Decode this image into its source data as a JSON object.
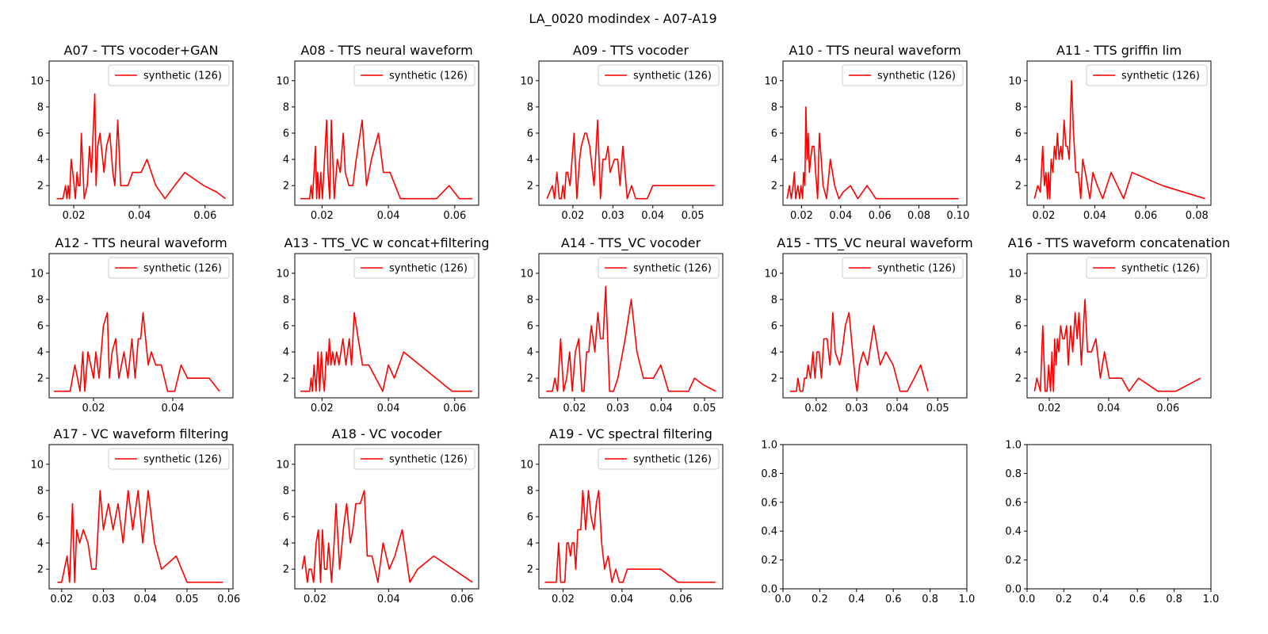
{
  "figure": {
    "title": "LA_0020 modindex - A07-A19",
    "line_color": "#ff0000"
  },
  "chart_data": [
    {
      "type": "line",
      "title": "A07 - TTS vocoder+GAN",
      "legend": "synthetic (126)",
      "legend_position": "upper right",
      "xlim": [
        0.0125,
        0.0685
      ],
      "ylim": [
        0.5,
        11.5
      ],
      "xticks": [
        0.02,
        0.04,
        0.06
      ],
      "yticks": [
        2,
        4,
        6,
        8,
        10
      ],
      "x": [
        0.0148,
        0.0167,
        0.0175,
        0.0179,
        0.0183,
        0.0187,
        0.0192,
        0.0197,
        0.0201,
        0.0205,
        0.021,
        0.0214,
        0.0219,
        0.0223,
        0.0232,
        0.0241,
        0.0248,
        0.0254,
        0.0264,
        0.0268,
        0.0273,
        0.028,
        0.0292,
        0.03,
        0.031,
        0.0319,
        0.0325,
        0.0334,
        0.0343,
        0.0354,
        0.0365,
        0.0379,
        0.0405,
        0.0423,
        0.045,
        0.0478,
        0.0507,
        0.0538,
        0.0596,
        0.0636,
        0.0662
      ],
      "y": [
        1,
        1,
        2,
        1,
        2,
        1,
        4,
        3,
        2,
        1,
        3,
        2,
        2,
        6,
        1,
        2,
        5,
        3,
        9,
        2,
        5,
        6,
        3,
        5,
        6,
        3,
        2,
        7,
        2,
        2,
        2,
        3,
        3,
        4,
        2,
        1,
        2,
        3,
        2,
        1.5,
        1
      ]
    },
    {
      "type": "line",
      "title": "A08 - TTS neural waveform",
      "legend": "synthetic (126)",
      "legend_position": "upper right",
      "xlim": [
        0.0118,
        0.0672
      ],
      "ylim": [
        0.5,
        11.5
      ],
      "xticks": [
        0.02,
        0.04,
        0.06
      ],
      "yticks": [
        2,
        4,
        6,
        8,
        10
      ],
      "x": [
        0.0135,
        0.0163,
        0.0167,
        0.0171,
        0.0176,
        0.018,
        0.0184,
        0.0187,
        0.0192,
        0.0196,
        0.0201,
        0.0214,
        0.0218,
        0.0223,
        0.0228,
        0.0237,
        0.0246,
        0.0255,
        0.0264,
        0.027,
        0.0281,
        0.0293,
        0.0303,
        0.0321,
        0.0334,
        0.0349,
        0.037,
        0.0385,
        0.0405,
        0.0436,
        0.0472,
        0.0545,
        0.0583,
        0.0614,
        0.0653
      ],
      "y": [
        1,
        1,
        2,
        1,
        3,
        5,
        1,
        3,
        1,
        3,
        1,
        7,
        3,
        1,
        7,
        1,
        4,
        3,
        6,
        3,
        2,
        2,
        4,
        7,
        2,
        4,
        6,
        3,
        3,
        1,
        1,
        1,
        2,
        1,
        1
      ]
    },
    {
      "type": "line",
      "title": "A09 - TTS vocoder",
      "legend": "synthetic (126)",
      "legend_position": "upper right",
      "xlim": [
        0.0115,
        0.0575
      ],
      "ylim": [
        0.5,
        11.5
      ],
      "xticks": [
        0.02,
        0.03,
        0.04,
        0.05
      ],
      "yticks": [
        2,
        4,
        6,
        8,
        10
      ],
      "x": [
        0.0135,
        0.0149,
        0.0154,
        0.016,
        0.0166,
        0.0171,
        0.0175,
        0.0179,
        0.0183,
        0.0187,
        0.0193,
        0.0203,
        0.021,
        0.0217,
        0.0221,
        0.023,
        0.0234,
        0.0242,
        0.0253,
        0.0262,
        0.0269,
        0.0275,
        0.0282,
        0.0288,
        0.0293,
        0.0304,
        0.0312,
        0.0318,
        0.0325,
        0.0336,
        0.0347,
        0.0357,
        0.0375,
        0.0386,
        0.04,
        0.0422,
        0.0437,
        0.0452,
        0.0475,
        0.0555
      ],
      "y": [
        1,
        2,
        1,
        3,
        1,
        1,
        2,
        1,
        3,
        3,
        2,
        6,
        1,
        4,
        5,
        6,
        6,
        5,
        2,
        7,
        1,
        4,
        4,
        5,
        3,
        4,
        4,
        2,
        5,
        1,
        2,
        1,
        1,
        1,
        2,
        2,
        2,
        2,
        2,
        2
      ]
    },
    {
      "type": "line",
      "title": "A10 - TTS neural waveform",
      "legend": "synthetic (126)",
      "legend_position": "upper right",
      "xlim": [
        0.0105,
        0.1045
      ],
      "ylim": [
        0.5,
        11.5
      ],
      "xticks": [
        0.02,
        0.04,
        0.06,
        0.08,
        0.1
      ],
      "yticks": [
        2,
        4,
        6,
        8,
        10
      ],
      "x": [
        0.0126,
        0.0138,
        0.0147,
        0.0157,
        0.0163,
        0.017,
        0.0181,
        0.019,
        0.0197,
        0.0205,
        0.021,
        0.0217,
        0.0222,
        0.0228,
        0.0234,
        0.024,
        0.0246,
        0.0255,
        0.0264,
        0.0272,
        0.0282,
        0.0291,
        0.031,
        0.0328,
        0.0347,
        0.0369,
        0.0391,
        0.0412,
        0.045,
        0.0488,
        0.0535,
        0.058,
        0.0625,
        0.1003
      ],
      "y": [
        1,
        2,
        1,
        2,
        3,
        1,
        2,
        1,
        2,
        1,
        3,
        2,
        8,
        4,
        6,
        3,
        4,
        5,
        5,
        3,
        1,
        6,
        2,
        1,
        4,
        2,
        1,
        1.5,
        2,
        1,
        2,
        1,
        1,
        1
      ]
    },
    {
      "type": "line",
      "title": "A11 - TTS griffin lim",
      "legend": "synthetic (126)",
      "legend_position": "upper right",
      "xlim": [
        0.0135,
        0.0855
      ],
      "ylim": [
        0.5,
        11.5
      ],
      "xticks": [
        0.02,
        0.04,
        0.06,
        0.08
      ],
      "yticks": [
        2,
        4,
        6,
        8,
        10
      ],
      "x": [
        0.0164,
        0.0177,
        0.0187,
        0.0196,
        0.0203,
        0.0209,
        0.0215,
        0.0219,
        0.0224,
        0.0229,
        0.0236,
        0.0242,
        0.0248,
        0.0254,
        0.026,
        0.0267,
        0.0273,
        0.028,
        0.0287,
        0.0293,
        0.03,
        0.0309,
        0.0317,
        0.0326,
        0.0336,
        0.0345,
        0.0353,
        0.0363,
        0.0381,
        0.0393,
        0.041,
        0.0431,
        0.0464,
        0.0513,
        0.0546,
        0.0665,
        0.0832
      ],
      "y": [
        1,
        2,
        1.5,
        5,
        2,
        3,
        1,
        3,
        1,
        4,
        3,
        5,
        4,
        6,
        4,
        5,
        4,
        7,
        5,
        5,
        4,
        10,
        6,
        3,
        3,
        1,
        4,
        3,
        1,
        3,
        2,
        1,
        3,
        1,
        3,
        2,
        1
      ]
    },
    {
      "type": "line",
      "title": "A12 - TTS neural waveform",
      "legend": "synthetic (126)",
      "legend_position": "upper right",
      "xlim": [
        0.0088,
        0.0552
      ],
      "ylim": [
        0.5,
        11.5
      ],
      "xticks": [
        0.02,
        0.04
      ],
      "yticks": [
        2,
        4,
        6,
        8,
        10
      ],
      "x": [
        0.01,
        0.0141,
        0.0153,
        0.0166,
        0.0173,
        0.0178,
        0.0186,
        0.0193,
        0.02,
        0.0206,
        0.0214,
        0.0225,
        0.0235,
        0.024,
        0.0247,
        0.0256,
        0.0264,
        0.0277,
        0.0287,
        0.0297,
        0.0305,
        0.0313,
        0.0319,
        0.0325,
        0.0338,
        0.0346,
        0.0357,
        0.0371,
        0.0387,
        0.0405,
        0.0421,
        0.0437,
        0.0456,
        0.0492,
        0.0518
      ],
      "y": [
        1,
        1,
        3,
        1,
        4,
        1,
        4,
        3,
        2,
        4,
        2,
        6,
        7,
        2,
        4,
        5,
        2,
        4,
        2,
        5,
        2,
        5,
        5,
        7,
        3,
        4,
        3,
        3,
        1,
        1,
        3,
        2,
        2,
        2,
        1
      ]
    },
    {
      "type": "line",
      "title": "A13 - TTS_VC w concat+filtering",
      "legend": "synthetic (126)",
      "legend_position": "upper right",
      "xlim": [
        0.0118,
        0.0672
      ],
      "ylim": [
        0.5,
        11.5
      ],
      "xticks": [
        0.02,
        0.04,
        0.06
      ],
      "yticks": [
        2,
        4,
        6,
        8,
        10
      ],
      "x": [
        0.0135,
        0.0163,
        0.0167,
        0.0171,
        0.0176,
        0.0182,
        0.0188,
        0.0193,
        0.0198,
        0.0203,
        0.0207,
        0.0213,
        0.0218,
        0.0222,
        0.0227,
        0.0232,
        0.0238,
        0.0244,
        0.0251,
        0.0263,
        0.0272,
        0.0282,
        0.0289,
        0.0297,
        0.0309,
        0.0322,
        0.0341,
        0.0383,
        0.04,
        0.0418,
        0.0446,
        0.0592,
        0.0653
      ],
      "y": [
        1,
        1,
        2,
        1,
        3,
        1,
        4,
        1,
        4,
        2,
        1,
        4,
        3,
        5,
        3,
        4,
        3,
        4,
        3,
        5,
        3,
        5,
        3,
        7,
        5,
        3,
        3,
        1,
        3,
        2,
        4,
        1,
        1
      ]
    },
    {
      "type": "line",
      "title": "A14 - TTS_VC vocoder",
      "legend": "synthetic (126)",
      "legend_position": "upper right",
      "xlim": [
        0.0118,
        0.0542
      ],
      "ylim": [
        0.5,
        11.5
      ],
      "xticks": [
        0.02,
        0.03,
        0.04,
        0.05
      ],
      "yticks": [
        2,
        4,
        6,
        8,
        10
      ],
      "x": [
        0.0135,
        0.0149,
        0.0155,
        0.0161,
        0.0168,
        0.0175,
        0.0182,
        0.0189,
        0.0195,
        0.0202,
        0.021,
        0.0217,
        0.0222,
        0.0228,
        0.0233,
        0.0239,
        0.0247,
        0.0254,
        0.026,
        0.0266,
        0.0272,
        0.0281,
        0.029,
        0.03,
        0.0317,
        0.0331,
        0.0344,
        0.0359,
        0.0382,
        0.0399,
        0.0417,
        0.0446,
        0.0463,
        0.0477,
        0.0497,
        0.0526
      ],
      "y": [
        1,
        1,
        2,
        1,
        5,
        1,
        2,
        4,
        1,
        4,
        5,
        1,
        1,
        4,
        4,
        6,
        4,
        7,
        5,
        5,
        9,
        1,
        1,
        2,
        5,
        8,
        4,
        2,
        2,
        3,
        1,
        1,
        1,
        2,
        1.5,
        1
      ]
    },
    {
      "type": "line",
      "title": "A15 - TTS_VC neural waveform",
      "legend": "synthetic (126)",
      "legend_position": "upper right",
      "xlim": [
        0.0118,
        0.0572
      ],
      "ylim": [
        0.5,
        11.5
      ],
      "xticks": [
        0.02,
        0.03,
        0.04,
        0.05
      ],
      "yticks": [
        2,
        4,
        6,
        8,
        10
      ],
      "x": [
        0.0135,
        0.0151,
        0.0155,
        0.016,
        0.0167,
        0.0171,
        0.0176,
        0.018,
        0.0186,
        0.0192,
        0.0197,
        0.0202,
        0.0207,
        0.0213,
        0.0219,
        0.0227,
        0.0234,
        0.0241,
        0.0247,
        0.0258,
        0.0264,
        0.0272,
        0.0281,
        0.029,
        0.0296,
        0.0301,
        0.0307,
        0.0316,
        0.0327,
        0.0342,
        0.0358,
        0.0372,
        0.039,
        0.0407,
        0.0425,
        0.0442,
        0.0458,
        0.0476
      ],
      "y": [
        1,
        1,
        2,
        1,
        1,
        2,
        2,
        3,
        2,
        4,
        2,
        4,
        4,
        2,
        5,
        5,
        3,
        7,
        4,
        3,
        4,
        6,
        7,
        4,
        2,
        1,
        3,
        4,
        3,
        6,
        3,
        4,
        3,
        1,
        1,
        2,
        3,
        1
      ]
    },
    {
      "type": "line",
      "title": "A16 - TTS waveform concatenation",
      "legend": "synthetic (126)",
      "legend_position": "upper right",
      "xlim": [
        0.0125,
        0.0745
      ],
      "ylim": [
        0.5,
        11.5
      ],
      "xticks": [
        0.02,
        0.04,
        0.06
      ],
      "yticks": [
        2,
        4,
        6,
        8,
        10
      ],
      "x": [
        0.015,
        0.0158,
        0.017,
        0.0178,
        0.0186,
        0.0192,
        0.0198,
        0.0204,
        0.0209,
        0.0214,
        0.0218,
        0.0223,
        0.0227,
        0.0232,
        0.0238,
        0.0245,
        0.0251,
        0.0258,
        0.0264,
        0.0272,
        0.0279,
        0.0287,
        0.0294,
        0.03,
        0.0308,
        0.032,
        0.0329,
        0.0342,
        0.0357,
        0.0372,
        0.0386,
        0.0402,
        0.0418,
        0.0444,
        0.0469,
        0.0501,
        0.0566,
        0.0627,
        0.071
      ],
      "y": [
        1,
        2,
        1,
        6,
        1,
        1,
        3,
        1,
        4,
        1,
        5,
        3,
        5,
        4,
        6,
        5,
        5,
        6,
        3,
        6,
        4,
        7,
        5,
        7,
        3,
        8,
        4,
        4,
        5,
        2,
        4,
        2,
        2,
        2,
        1,
        2,
        1,
        1,
        2
      ]
    },
    {
      "type": "line",
      "title": "A17 - VC waveform filtering",
      "legend": "synthetic (126)",
      "legend_position": "upper right",
      "xlim": [
        0.017,
        0.061
      ],
      "ylim": [
        0.5,
        11.5
      ],
      "xticks": [
        0.02,
        0.03,
        0.04,
        0.05,
        0.06
      ],
      "yticks": [
        2,
        4,
        6,
        8,
        10
      ],
      "x": [
        0.019,
        0.02,
        0.0213,
        0.0219,
        0.0226,
        0.0231,
        0.0236,
        0.0243,
        0.0252,
        0.0263,
        0.0272,
        0.0282,
        0.0292,
        0.03,
        0.0312,
        0.0323,
        0.0335,
        0.0347,
        0.0359,
        0.037,
        0.0383,
        0.0394,
        0.0407,
        0.0422,
        0.0439,
        0.0474,
        0.05,
        0.0586
      ],
      "y": [
        1,
        1,
        3,
        1,
        7,
        1,
        5,
        4,
        5,
        4,
        2,
        2,
        8,
        5,
        7,
        5,
        7,
        4,
        8,
        5,
        8,
        4,
        8,
        4,
        2,
        3,
        1,
        1
      ]
    },
    {
      "type": "line",
      "title": "A18 - VC vocoder",
      "legend": "synthetic (126)",
      "legend_position": "upper right",
      "xlim": [
        0.0145,
        0.0645
      ],
      "ylim": [
        0.5,
        11.5
      ],
      "xticks": [
        0.02,
        0.04,
        0.06
      ],
      "yticks": [
        2,
        4,
        6,
        8,
        10
      ],
      "x": [
        0.0165,
        0.0171,
        0.0179,
        0.0184,
        0.019,
        0.0196,
        0.0203,
        0.0209,
        0.0215,
        0.022,
        0.0226,
        0.0232,
        0.0237,
        0.0245,
        0.0252,
        0.0257,
        0.0267,
        0.0277,
        0.0286,
        0.0296,
        0.0303,
        0.0311,
        0.0323,
        0.0334,
        0.0342,
        0.0355,
        0.0371,
        0.0385,
        0.0402,
        0.0417,
        0.0437,
        0.0458,
        0.0479,
        0.0523,
        0.0628
      ],
      "y": [
        2,
        3,
        1,
        2,
        2,
        1,
        4,
        5,
        1,
        5,
        2,
        2,
        4,
        1,
        4,
        7,
        2,
        5,
        7,
        4,
        5,
        7,
        7,
        8,
        3,
        3,
        1,
        4,
        2,
        3,
        5,
        1,
        2,
        3,
        1
      ]
    },
    {
      "type": "line",
      "title": "A19 - VC spectral filtering",
      "legend": "synthetic (126)",
      "legend_position": "upper right",
      "xlim": [
        0.0118,
        0.0742
      ],
      "ylim": [
        0.5,
        11.5
      ],
      "xticks": [
        0.02,
        0.04,
        0.06
      ],
      "yticks": [
        2,
        4,
        6,
        8,
        10
      ],
      "x": [
        0.0138,
        0.017,
        0.0177,
        0.0185,
        0.0192,
        0.0199,
        0.0206,
        0.0213,
        0.0218,
        0.0225,
        0.0231,
        0.0237,
        0.0243,
        0.025,
        0.026,
        0.0267,
        0.0277,
        0.0286,
        0.0295,
        0.0305,
        0.0313,
        0.0321,
        0.0331,
        0.0341,
        0.0353,
        0.0366,
        0.0379,
        0.0391,
        0.0403,
        0.0418,
        0.0437,
        0.0461,
        0.0494,
        0.0531,
        0.059,
        0.0651,
        0.0717
      ],
      "y": [
        1,
        1,
        1,
        4,
        1,
        1,
        1,
        4,
        4,
        3,
        4,
        4,
        2,
        5,
        5,
        8,
        5,
        8,
        6,
        5,
        7,
        8,
        4,
        2,
        3,
        1,
        2,
        1,
        1,
        2,
        2,
        2,
        2,
        2,
        1,
        1,
        1
      ]
    },
    {
      "type": "line",
      "title": "",
      "legend": "",
      "xlim": [
        0,
        1
      ],
      "ylim": [
        0,
        1
      ],
      "xticks": [
        0.0,
        0.2,
        0.4,
        0.6,
        0.8,
        1.0
      ],
      "yticks": [
        0.0,
        0.2,
        0.4,
        0.6,
        0.8,
        1.0
      ]
    },
    {
      "type": "line",
      "title": "",
      "legend": "",
      "xlim": [
        0,
        1
      ],
      "ylim": [
        0,
        1
      ],
      "xticks": [
        0.0,
        0.2,
        0.4,
        0.6,
        0.8,
        1.0
      ],
      "yticks": [
        0.0,
        0.2,
        0.4,
        0.6,
        0.8,
        1.0
      ]
    }
  ]
}
